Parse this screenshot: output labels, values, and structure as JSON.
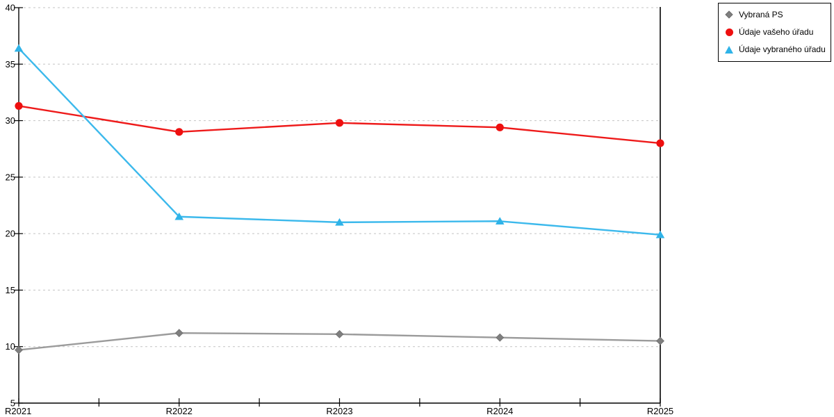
{
  "chart_data": {
    "type": "line",
    "title": "",
    "xlabel": "",
    "ylabel": "",
    "categories": [
      "R2021",
      "R2022",
      "R2023",
      "R2024",
      "R2025"
    ],
    "series": [
      {
        "name": "Vybraná PS",
        "marker": "diamond",
        "color": "#7f7f7f",
        "line_color": "#9b9b9b",
        "values": [
          9.7,
          11.2,
          11.1,
          10.8,
          10.5
        ]
      },
      {
        "name": "Údaje vašeho úřadu",
        "marker": "circle",
        "color": "#ee0f0f",
        "line_color": "#ee1a1a",
        "values": [
          31.3,
          29.0,
          29.8,
          29.4,
          28.0
        ]
      },
      {
        "name": "Údaje vybraného úřadu",
        "marker": "triangle",
        "color": "#2fb3e8",
        "line_color": "#3cb9ec",
        "values": [
          36.4,
          21.5,
          21.0,
          21.1,
          19.9
        ]
      }
    ],
    "ylim": [
      5,
      40
    ],
    "yticks": [
      5,
      10,
      15,
      20,
      25,
      30,
      35,
      40
    ],
    "grid": "horizontal-dashed",
    "grid_color": "#c3c3c3",
    "axis_color": "#000000",
    "legend_position": "top-right"
  }
}
